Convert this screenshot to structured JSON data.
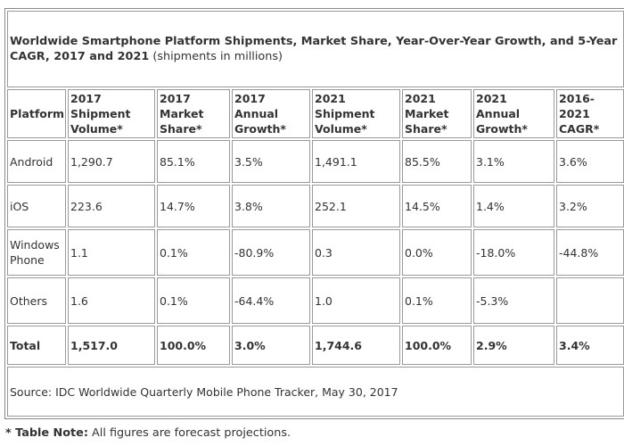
{
  "title_bold": "Worldwide Smartphone Platform Shipments, Market Share, Year-Over-Year Growth, and 5-Year CAGR, 2017 and 2021",
  "title_note": "(shipments in millions)",
  "headers": [
    "Platform",
    "2017 Shipment Volume*",
    "2017 Market Share*",
    "2017 Annual Growth*",
    "2021 Shipment Volume*",
    "2021 Market Share*",
    "2021 Annual Growth*",
    "2016-2021 CAGR*"
  ],
  "rows": [
    [
      "Android",
      "1,290.7",
      "85.1%",
      "3.5%",
      "1,491.1",
      "85.5%",
      "3.1%",
      "3.6%"
    ],
    [
      "iOS",
      "223.6",
      "14.7%",
      "3.8%",
      "252.1",
      "14.5%",
      "1.4%",
      "3.2%"
    ],
    [
      "Windows Phone",
      "1.1",
      "0.1%",
      "-80.9%",
      "0.3",
      "0.0%",
      "-18.0%",
      "-44.8%"
    ],
    [
      "Others",
      "1.6",
      "0.1%",
      "-64.4%",
      "1.0",
      "0.1%",
      "-5.3%",
      ""
    ]
  ],
  "total": [
    "Total",
    "1,517.0",
    "100.0%",
    "3.0%",
    "1,744.6",
    "100.0%",
    "2.9%",
    "3.4%"
  ],
  "source": "Source: IDC Worldwide Quarterly Mobile Phone Tracker, May 30, 2017",
  "note_label": "* Table Note:",
  "note_text": " All figures are forecast projections."
}
